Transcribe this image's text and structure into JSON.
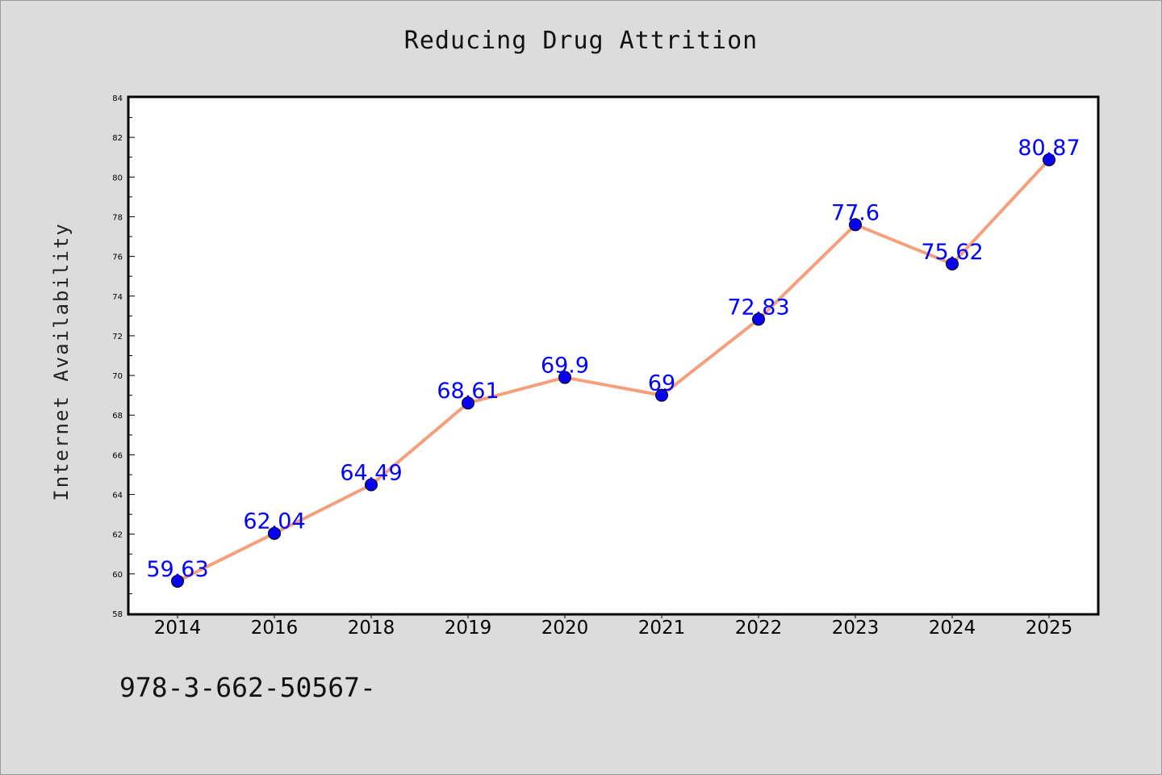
{
  "chart_data": {
    "type": "line",
    "title": "Reducing Drug Attrition",
    "xlabel": "",
    "ylabel": "Internet Availability",
    "categories": [
      "2014",
      "2016",
      "2018",
      "2019",
      "2020",
      "2021",
      "2022",
      "2023",
      "2024",
      "2025"
    ],
    "values": [
      59.63,
      62.04,
      64.49,
      68.61,
      69.9,
      69,
      72.83,
      77.6,
      75.62,
      80.87
    ],
    "data_labels": [
      "59.63",
      "62.04",
      "64.49",
      "68.61",
      "69.9",
      "69",
      "72.83",
      "77.6",
      "75.62",
      "80.87"
    ],
    "ylim": [
      58,
      84
    ],
    "y_ticks": [
      "58",
      "60",
      "62",
      "64",
      "66",
      "68",
      "70",
      "72",
      "74",
      "76",
      "78",
      "80",
      "82",
      "84"
    ],
    "grid": false,
    "legend": "none",
    "line_color": "#f4a07c",
    "marker_color": "#0a00f0",
    "label_color": "#0000ff"
  },
  "footnote": "978-3-662-50567-"
}
